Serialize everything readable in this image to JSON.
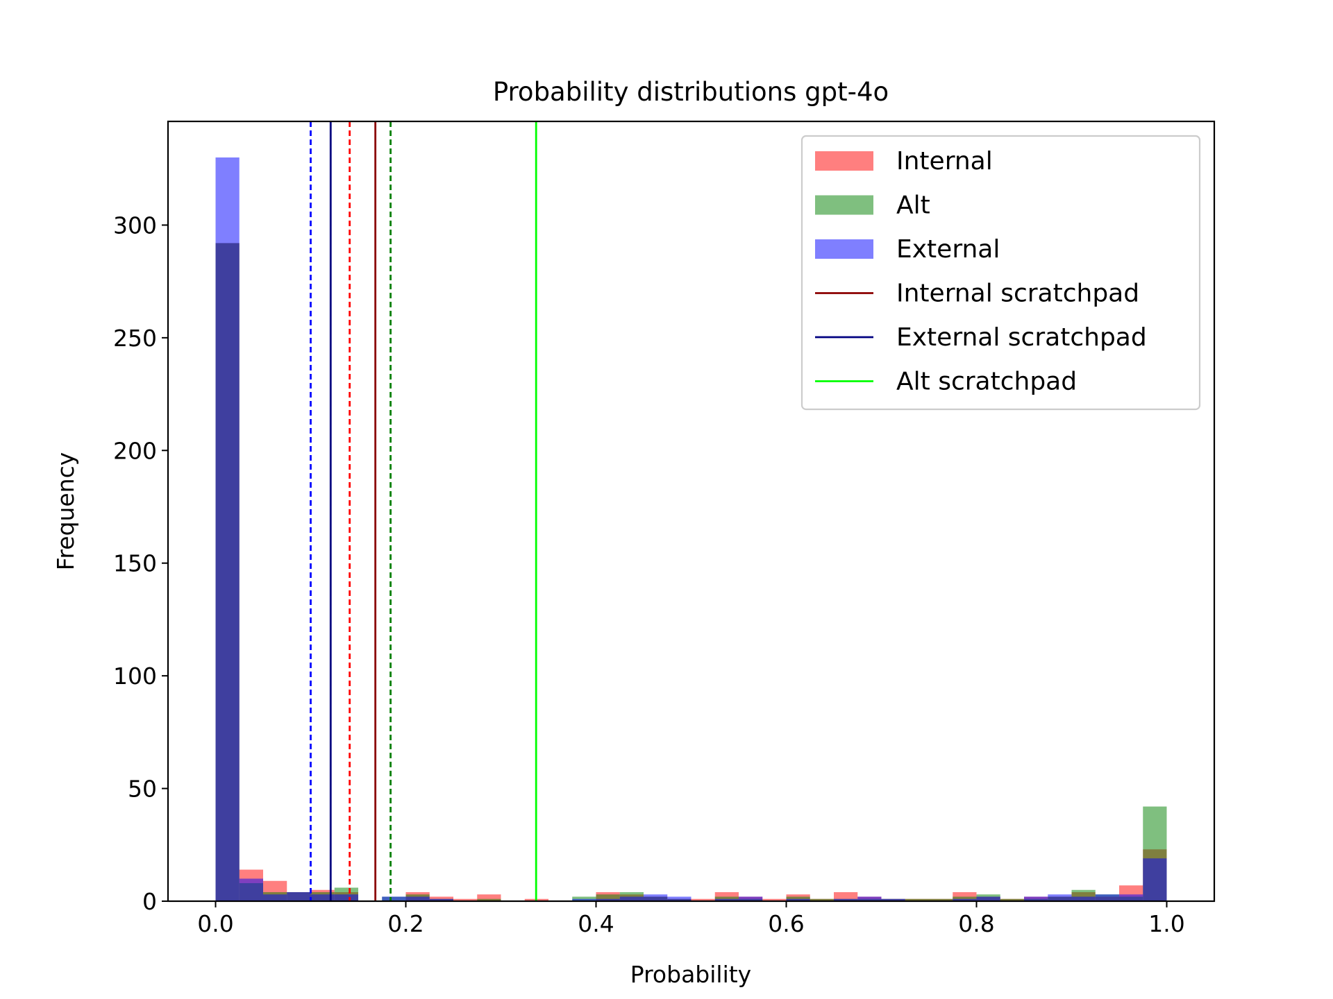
{
  "chart_data": {
    "type": "bar",
    "title": "Probability distributions gpt-4o",
    "xlabel": "Probability",
    "ylabel": "Frequency",
    "xlim": [
      -0.05,
      1.05
    ],
    "ylim": [
      0,
      346
    ],
    "xticks": [
      0.0,
      0.2,
      0.4,
      0.6,
      0.8,
      1.0
    ],
    "xtick_labels": [
      "0.0",
      "0.2",
      "0.4",
      "0.6",
      "0.8",
      "1.0"
    ],
    "yticks": [
      0,
      50,
      100,
      150,
      200,
      250,
      300
    ],
    "ytick_labels": [
      "0",
      "50",
      "100",
      "150",
      "200",
      "250",
      "300"
    ],
    "grid": false,
    "legend_position": "upper-right",
    "bin_width": 0.025,
    "bin_starts": [
      0,
      0.025,
      0.05,
      0.075,
      0.1,
      0.125,
      0.15,
      0.175,
      0.2,
      0.225,
      0.25,
      0.275,
      0.3,
      0.325,
      0.35,
      0.375,
      0.4,
      0.425,
      0.45,
      0.475,
      0.5,
      0.525,
      0.55,
      0.575,
      0.6,
      0.625,
      0.65,
      0.675,
      0.7,
      0.725,
      0.75,
      0.775,
      0.8,
      0.825,
      0.85,
      0.875,
      0.9,
      0.925,
      0.95,
      0.975
    ],
    "series": [
      {
        "name": "Internal",
        "color": "#ff0000",
        "values": [
          292,
          14,
          9,
          4,
          5,
          4,
          0,
          0,
          4,
          2,
          1,
          3,
          0,
          1,
          0,
          0,
          4,
          3,
          2,
          1,
          1,
          4,
          2,
          1,
          3,
          1,
          4,
          2,
          1,
          1,
          1,
          4,
          2,
          1,
          2,
          2,
          4,
          2,
          7,
          23
        ]
      },
      {
        "name": "Alt",
        "color": "#008000",
        "values": [
          292,
          8,
          4,
          4,
          4,
          6,
          0,
          2,
          3,
          1,
          0,
          1,
          0,
          0,
          0,
          2,
          3,
          4,
          2,
          1,
          0,
          2,
          1,
          0,
          2,
          1,
          1,
          1,
          1,
          1,
          1,
          2,
          3,
          1,
          1,
          2,
          5,
          3,
          2,
          42
        ]
      },
      {
        "name": "External",
        "color": "#0000ff",
        "values": [
          330,
          10,
          3,
          4,
          3,
          3,
          0,
          2,
          2,
          1,
          0,
          0,
          0,
          0,
          0,
          1,
          1,
          2,
          3,
          2,
          0,
          1,
          2,
          0,
          1,
          0,
          1,
          2,
          1,
          0,
          0,
          1,
          2,
          0,
          2,
          3,
          2,
          3,
          3,
          19
        ]
      }
    ],
    "vlines": [
      {
        "name": "Internal scratchpad",
        "x": 0.168,
        "color": "#8b0000",
        "style": "solid",
        "in_legend": true
      },
      {
        "name": "External scratchpad",
        "x": 0.121,
        "color": "#000080",
        "style": "solid",
        "in_legend": true
      },
      {
        "name": "Alt scratchpad",
        "x": 0.337,
        "color": "#00ff00",
        "style": "solid",
        "in_legend": true
      },
      {
        "name": "",
        "x": 0.1,
        "color": "#0000ff",
        "style": "dashed",
        "in_legend": false
      },
      {
        "name": "",
        "x": 0.141,
        "color": "#ff0000",
        "style": "dashed",
        "in_legend": false
      },
      {
        "name": "",
        "x": 0.184,
        "color": "#008000",
        "style": "dashed",
        "in_legend": false
      }
    ]
  }
}
